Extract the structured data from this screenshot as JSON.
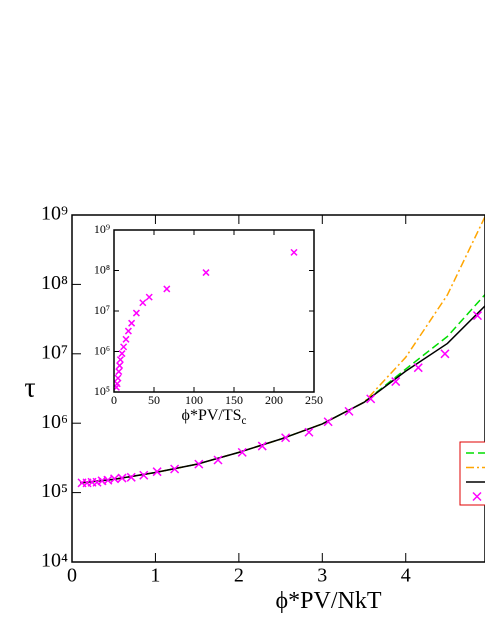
{
  "chart_data": [
    {
      "type": "line",
      "x_label": "ϕ*PV/NkT",
      "y_label": "τ",
      "xlim": [
        0,
        4.95
      ],
      "xticks": [
        0,
        1,
        2,
        3,
        4
      ],
      "ylim": [
        10000,
        1000000000
      ],
      "y_scale": "log",
      "yticks": [
        {
          "value": 10000,
          "label": "10⁴"
        },
        {
          "value": 100000,
          "label": "10⁵"
        },
        {
          "value": 1000000,
          "label": "10⁶"
        },
        {
          "value": 10000000,
          "label": "10⁷"
        },
        {
          "value": 100000000,
          "label": "10⁸"
        },
        {
          "value": 1000000000,
          "label": "10⁹"
        }
      ],
      "legend": "right",
      "series": [
        {
          "color": "#00dd00",
          "style": "dashed",
          "x": [
            0.1,
            0.5,
            1,
            1.5,
            2,
            2.5,
            3,
            3.5,
            4,
            4.5,
            5
          ],
          "values": [
            138000,
            155000,
            195000,
            257000,
            380000,
            589000,
            977000,
            2000000,
            6030000,
            17800000,
            83200000
          ]
        },
        {
          "color": "#ffa500",
          "style": "dashdot",
          "x": [
            0.1,
            0.5,
            1,
            1.5,
            2,
            2.5,
            3,
            3.5,
            4,
            4.5,
            5
          ],
          "values": [
            138000,
            155000,
            195000,
            257000,
            380000,
            589000,
            977000,
            2000000,
            8910000,
            70800000,
            1260000000
          ]
        },
        {
          "color": "#000000",
          "style": "solid",
          "x": [
            0.1,
            0.5,
            1,
            1.5,
            2,
            2.5,
            3,
            3.5,
            4,
            4.5,
            5
          ],
          "values": [
            138000,
            155000,
            195000,
            257000,
            380000,
            589000,
            977000,
            2000000,
            5620000,
            14100000,
            56200000
          ]
        },
        {
          "color": "#ff00ff",
          "style": "marker",
          "x": [
            0.12,
            0.18,
            0.24,
            0.3,
            0.36,
            0.43,
            0.51,
            0.6,
            0.71,
            0.86,
            1.02,
            1.23,
            1.52,
            1.75,
            2.04,
            2.28,
            2.56,
            2.84,
            3.07,
            3.32,
            3.58,
            3.88,
            4.15,
            4.47,
            4.86
          ],
          "values": [
            138000,
            138000,
            141000,
            141000,
            148000,
            151000,
            158000,
            162000,
            166000,
            178000,
            200000,
            219000,
            257000,
            295000,
            380000,
            468000,
            617000,
            741000,
            1050000,
            1480000,
            2240000,
            3980000,
            6310000,
            10000000,
            35500000
          ]
        }
      ]
    },
    {
      "type": "scatter",
      "x_label": "ϕ*PV/TS",
      "x_label_sub": "c",
      "xlim": [
        0,
        250
      ],
      "xticks": [
        0,
        50,
        100,
        150,
        200,
        250
      ],
      "ylim": [
        100000,
        1000000000
      ],
      "y_scale": "log",
      "yticks": [
        {
          "value": 100000,
          "label": "10⁵"
        },
        {
          "value": 1000000,
          "label": "10⁶"
        },
        {
          "value": 10000000,
          "label": "10⁷"
        },
        {
          "value": 100000000,
          "label": "10⁸"
        },
        {
          "value": 1000000000,
          "label": "10⁹"
        }
      ],
      "series": [
        {
          "color": "#ff00ff",
          "style": "marker",
          "x": [
            3,
            4,
            5,
            6,
            7,
            8,
            10,
            12,
            15,
            18,
            22,
            28,
            36,
            44,
            66,
            115,
            225
          ],
          "values": [
            130000,
            160000,
            220000,
            320000,
            450000,
            630000,
            890000,
            1300000,
            2000000,
            3200000,
            5000000,
            8900000,
            16000000,
            22000000,
            35000000,
            89000000,
            280000000
          ]
        }
      ]
    }
  ]
}
